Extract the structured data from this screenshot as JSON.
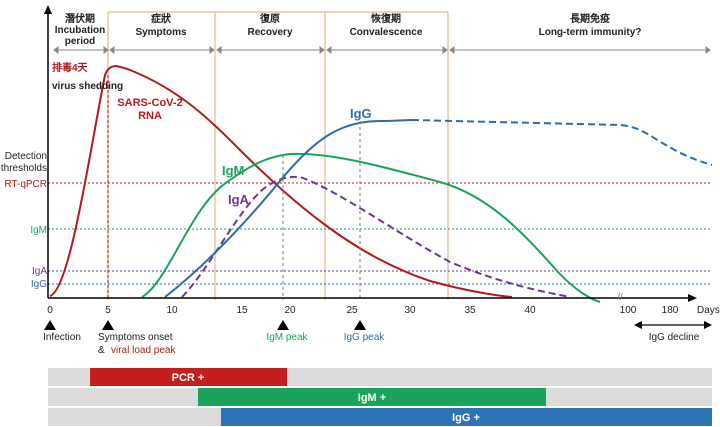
{
  "phases": [
    {
      "zh": "潛伏期",
      "en": "Incubation",
      "en2": "period"
    },
    {
      "zh": "症狀",
      "en": "Symptoms"
    },
    {
      "zh": "復原",
      "en": "Recovery"
    },
    {
      "zh": "恢復期",
      "en": "Convalescence"
    },
    {
      "zh": "長期免疫",
      "en": "Long-term immunity?"
    }
  ],
  "curve_labels": {
    "shedding_zh": "排毒4天",
    "shedding_en": "virus shedding",
    "rna_line1": "SARS-CoV-2",
    "rna_line2": "RNA",
    "igg": "IgG",
    "igm": "IgM",
    "iga": "IgA"
  },
  "thresholds": {
    "heading1": "Detection",
    "heading2": "thresholds",
    "rtqpcr": "RT-qPCR",
    "igm": "IgM",
    "iga": "IgA",
    "igg": "IgG"
  },
  "axis": {
    "ticks": [
      "0",
      "5",
      "10",
      "15",
      "20",
      "25",
      "30",
      "35",
      "40",
      "100",
      "180"
    ],
    "unit": "Days"
  },
  "events": {
    "infection": "Infection",
    "symptoms_onset": "Symptoms onset",
    "and": "& ",
    "viral_peak": "viral load peak",
    "igm_peak": "IgM peak",
    "igg_peak": "IgG peak",
    "igg_decline": "IgG decline"
  },
  "bars": {
    "pcr": "PCR +",
    "igm": "IgM +",
    "igg": "IgG +"
  },
  "colors": {
    "rna": "#b31b1b",
    "igm": "#1aa35a",
    "iga": "#6e3596",
    "igg": "#2e6da4",
    "bar_bg": "#dcdcdc"
  }
}
